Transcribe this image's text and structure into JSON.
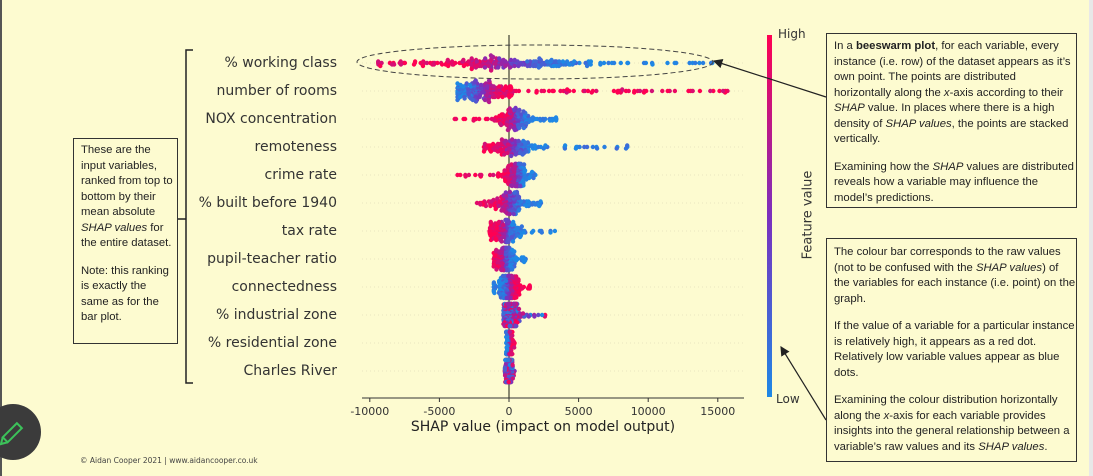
{
  "colors": {
    "background": "#fdfbd0",
    "high": "#ff0052",
    "mid": "#7b2fbe",
    "low": "#1e88e5",
    "annotation_border": "#333333",
    "pencil": "#3cc25a"
  },
  "chart_data": {
    "type": "scatter",
    "subtype": "beeswarm",
    "xlabel": "SHAP value (impact on model output)",
    "xlim": [
      -11000,
      17000
    ],
    "xticks": [
      -10000,
      -5000,
      0,
      5000,
      10000,
      15000
    ],
    "xtick_labels": [
      "-10000",
      "-5000",
      "0",
      "5000",
      "10000",
      "15000"
    ],
    "zero_line": true,
    "grid": false,
    "colorbar": {
      "title": "Feature value",
      "high_label": "High",
      "low_label": "Low",
      "colors": [
        "#1e88e5",
        "#7b2fbe",
        "#ff0052"
      ]
    },
    "features": [
      {
        "name": "% working class",
        "shap_range": [
          -9400,
          14600
        ],
        "dense_center": 0,
        "spread": 2800,
        "high_values_shap": "negative"
      },
      {
        "name": "number of rooms",
        "shap_range": [
          -3700,
          15700
        ],
        "dense_center": -1800,
        "spread": 1100,
        "high_values_shap": "positive"
      },
      {
        "name": "NOX concentration",
        "shap_range": [
          -3900,
          3400
        ],
        "dense_center": 400,
        "spread": 600,
        "high_values_shap": "negative"
      },
      {
        "name": "remoteness",
        "shap_range": [
          -1800,
          8500
        ],
        "dense_center": 300,
        "spread": 800,
        "high_values_shap": "negative"
      },
      {
        "name": "crime rate",
        "shap_range": [
          -3700,
          1900
        ],
        "dense_center": 500,
        "spread": 500,
        "high_values_shap": "negative"
      },
      {
        "name": "% built before 1940",
        "shap_range": [
          -2300,
          2300
        ],
        "dense_center": 0,
        "spread": 700,
        "high_values_shap": "negative"
      },
      {
        "name": "tax rate",
        "shap_range": [
          -1400,
          3300
        ],
        "dense_center": -200,
        "spread": 500,
        "high_values_shap": "negative"
      },
      {
        "name": "pupil-teacher ratio",
        "shap_range": [
          -1100,
          1200
        ],
        "dense_center": -300,
        "spread": 350,
        "high_values_shap": "negative"
      },
      {
        "name": "connectedness",
        "shap_range": [
          -1100,
          1500
        ],
        "dense_center": 0,
        "spread": 350,
        "high_values_shap": "positive"
      },
      {
        "name": "% industrial zone",
        "shap_range": [
          -400,
          2600
        ],
        "dense_center": 200,
        "spread": 300,
        "high_values_shap": "mixed"
      },
      {
        "name": "% residential zone",
        "shap_range": [
          -200,
          400
        ],
        "dense_center": 0,
        "spread": 100,
        "high_values_shap": "positive"
      },
      {
        "name": "Charles River",
        "shap_range": [
          -300,
          400
        ],
        "dense_center": 0,
        "spread": 100,
        "high_values_shap": "mixed"
      }
    ]
  },
  "left_note": {
    "paragraphs": [
      [
        {
          "t": "These are the input variables, ranked from top to bottom by their mean absolute "
        },
        {
          "t": "SHAP values",
          "i": true
        },
        {
          "t": " for the entire dataset."
        }
      ],
      [
        {
          "t": "Note: this ranking is exactly the same as for the bar plot."
        }
      ]
    ]
  },
  "note_beeswarm": {
    "paragraphs": [
      [
        {
          "t": "In a "
        },
        {
          "t": "beeswarm plot",
          "b": true
        },
        {
          "t": ", for each variable, every instance (i.e. row) of the dataset appears as it’s own point. The points are distributed horizontally along the "
        },
        {
          "t": "x",
          "i": true
        },
        {
          "t": "-axis according to their "
        },
        {
          "t": "SHAP",
          "i": true
        },
        {
          "t": " value. In places where there is a high density of "
        },
        {
          "t": "SHAP values",
          "i": true
        },
        {
          "t": ", the points are stacked vertically."
        }
      ],
      [
        {
          "t": "Examining how the "
        },
        {
          "t": "SHAP",
          "i": true
        },
        {
          "t": " values are distributed reveals how a variable may influence the model’s predictions."
        }
      ]
    ]
  },
  "note_colour": {
    "paragraphs": [
      [
        {
          "t": "The colour bar corresponds to the raw values (not to be confused with the "
        },
        {
          "t": "SHAP values",
          "i": true
        },
        {
          "t": ") of the variables for each instance (i.e. point) on the graph."
        }
      ],
      [
        {
          "t": "If the value of a variable for a particular instance is relatively high, it appears as a red dot. Relatively low variable values appear as blue dots."
        }
      ],
      [
        {
          "t": "Examining the colour distribution horizontally along the "
        },
        {
          "t": "x",
          "i": true
        },
        {
          "t": "-axis for each variable provides insights into the general relationship between a variable’s raw values and its "
        },
        {
          "t": "SHAP values",
          "i": true
        },
        {
          "t": "."
        }
      ]
    ]
  },
  "footer": "© Aidan Cooper 2021 | www.aidancooper.co.uk",
  "tools": {
    "pencil_icon": "pencil-icon"
  }
}
